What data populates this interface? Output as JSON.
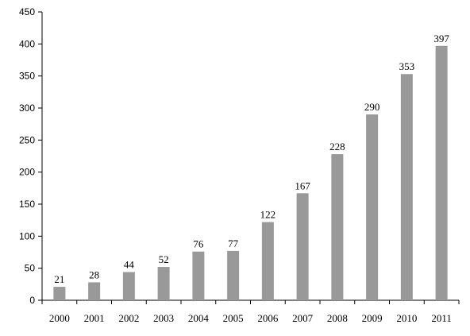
{
  "chart_data": {
    "type": "bar",
    "title": "",
    "xlabel": "",
    "ylabel": "",
    "categories": [
      "2000",
      "2001",
      "2002",
      "2003",
      "2004",
      "2005",
      "2006",
      "2007",
      "2008",
      "2009",
      "2010",
      "2011"
    ],
    "values": [
      21,
      28,
      44,
      52,
      76,
      77,
      122,
      167,
      228,
      290,
      353,
      397
    ],
    "data_labels": [
      "21",
      "28",
      "44",
      "52",
      "76",
      "77",
      "122",
      "167",
      "228",
      "290",
      "353",
      "397"
    ],
    "ylim": [
      0,
      450
    ],
    "yticks": [
      0,
      50,
      100,
      150,
      200,
      250,
      300,
      350,
      400,
      450
    ],
    "ytick_labels": [
      "0",
      "50",
      "100",
      "150",
      "200",
      "250",
      "300",
      "350",
      "400",
      "450"
    ],
    "grid": false,
    "legend": "none",
    "bar_color": "#999999"
  }
}
